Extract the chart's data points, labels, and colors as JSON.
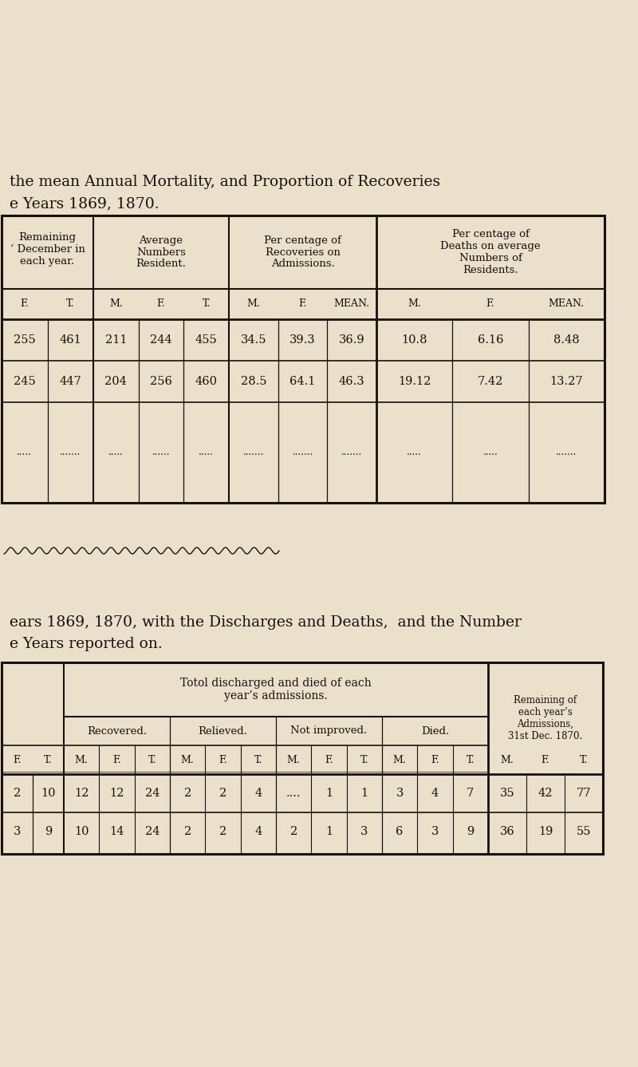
{
  "bg_color": "#EAE0CC",
  "black": "#1a1008",
  "title1_lines": [
    "the mean Annual Mortality, and Proportion of Recoveries",
    "e Years 1869, 1870."
  ],
  "title2_lines": [
    "ears 1869, 1870, with the Discharges and Deaths,  and the Number",
    "e Years reported on."
  ],
  "table1": {
    "group_headers": [
      "Remaining\n‘ December in\neach year.",
      "Average\nNumbers\nResident.",
      "Per centage of\nRecoveries on\nAdmissions.",
      "Per centage of\nDeaths on average\nNumbers of\nResidents."
    ],
    "sub_headers_rem": [
      "F.",
      "T."
    ],
    "sub_headers_avg": [
      "M.",
      "F.",
      "T."
    ],
    "sub_headers_rec": [
      "M.",
      "F.",
      "MEAN."
    ],
    "sub_headers_dth": [
      "M.",
      "F.",
      "MEAN."
    ],
    "rows": [
      [
        "255",
        "461",
        "211",
        "244",
        "455",
        "34.5",
        "39.3",
        "36.9",
        "10.8",
        "6.16",
        "8.48"
      ],
      [
        "245",
        "447",
        "204",
        "256",
        "460",
        "28.5",
        "64.1",
        "46.3",
        "19.12",
        "7.42",
        "13.27"
      ],
      [
        ".....",
        ".......",
        ".....",
        "......",
        ".....",
        ".......",
        ".......",
        ".......",
        ".....",
        ".....",
        "......."
      ]
    ]
  },
  "table2": {
    "main_header": "Totol discharged and died of each\nyear’s admissions.",
    "right_header": "Remaining of\neach year’s\nAdmissions,\n31st Dec. 1870.",
    "sub_groups": [
      "Recovered.",
      "Relieved.",
      "Not improved.",
      "Died."
    ],
    "rows": [
      {
        "left": [
          "2",
          "10"
        ],
        "recovered": [
          "12",
          "12",
          "24"
        ],
        "relieved": [
          "2",
          "2",
          "4"
        ],
        "not_improved": [
          "....",
          "1",
          "1"
        ],
        "died": [
          "3",
          "4",
          "7"
        ],
        "remaining": [
          "35",
          "42",
          "77"
        ]
      },
      {
        "left": [
          "3",
          "9"
        ],
        "recovered": [
          "10",
          "14",
          "24"
        ],
        "relieved": [
          "2",
          "2",
          "4"
        ],
        "not_improved": [
          "2",
          "1",
          "3"
        ],
        "died": [
          "6",
          "3",
          "9"
        ],
        "remaining": [
          "36",
          "19",
          "55"
        ]
      }
    ]
  }
}
